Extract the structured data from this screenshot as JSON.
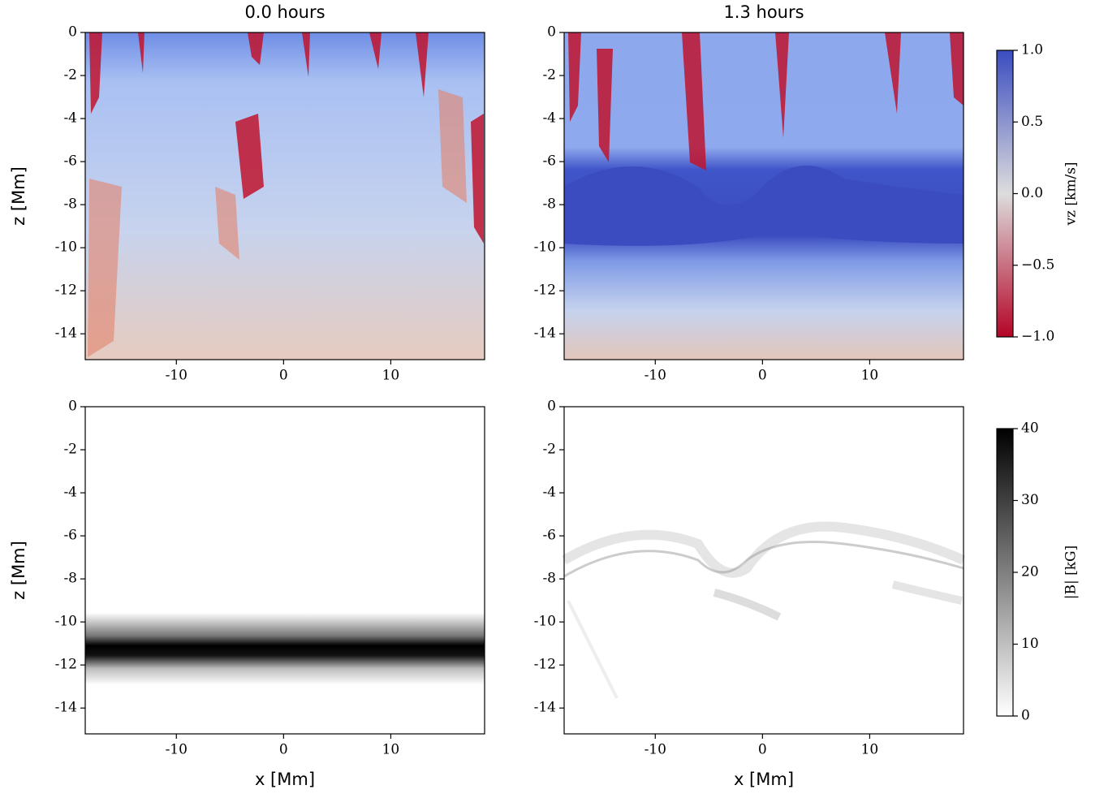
{
  "chart_data": [
    {
      "type": "heatmap",
      "title": "0.0 hours",
      "ylabel": "z [Mm]",
      "xlim": [
        -18.5,
        18.75
      ],
      "ylim": [
        -15.2,
        0
      ],
      "xticks": [
        -10,
        0,
        10
      ],
      "yticks": [
        0,
        -2,
        -4,
        -6,
        -8,
        -10,
        -12,
        -14
      ]
    },
    {
      "type": "heatmap",
      "title": "1.3 hours",
      "xlim": [
        -18.5,
        18.75
      ],
      "ylim": [
        -15.2,
        0
      ],
      "xticks": [
        -10,
        0,
        10
      ],
      "yticks": [
        0,
        -2,
        -4,
        -6,
        -8,
        -10,
        -12,
        -14
      ],
      "colorbar": {
        "label": "vz [km/s]",
        "lim": [
          -1,
          1
        ],
        "colors": [
          "#b40426",
          "#dddddd",
          "#3b4cc0"
        ],
        "ticks": [
          {
            "value": 1,
            "label": "1.0"
          },
          0.5,
          {
            "value": 0,
            "label": "0.0"
          },
          {
            "value": -0.5,
            "label": "−0.5"
          },
          {
            "value": -1,
            "label": "−1.0"
          }
        ]
      }
    },
    {
      "type": "heatmap",
      "xlabel": "x [Mm]",
      "ylabel": "z [Mm]",
      "xlim": [
        -18.5,
        18.75
      ],
      "ylim": [
        -15.2,
        0
      ],
      "xticks": [
        -10,
        0,
        10
      ],
      "yticks": [
        0,
        -2,
        -4,
        -6,
        -8,
        -10,
        -12,
        -14
      ]
    },
    {
      "type": "heatmap",
      "xlabel": "x [Mm]",
      "xlim": [
        -18.5,
        18.75
      ],
      "ylim": [
        -15.2,
        0
      ],
      "xticks": [
        -10,
        0,
        10
      ],
      "yticks": [
        0,
        -2,
        -4,
        -6,
        -8,
        -10,
        -12,
        -14
      ],
      "colorbar": {
        "label": "|B| [kG]",
        "lim": [
          0,
          40
        ],
        "colors": [
          "#ffffff",
          "#000000"
        ],
        "ticks": [
          0,
          10,
          20,
          30,
          40
        ]
      }
    }
  ]
}
